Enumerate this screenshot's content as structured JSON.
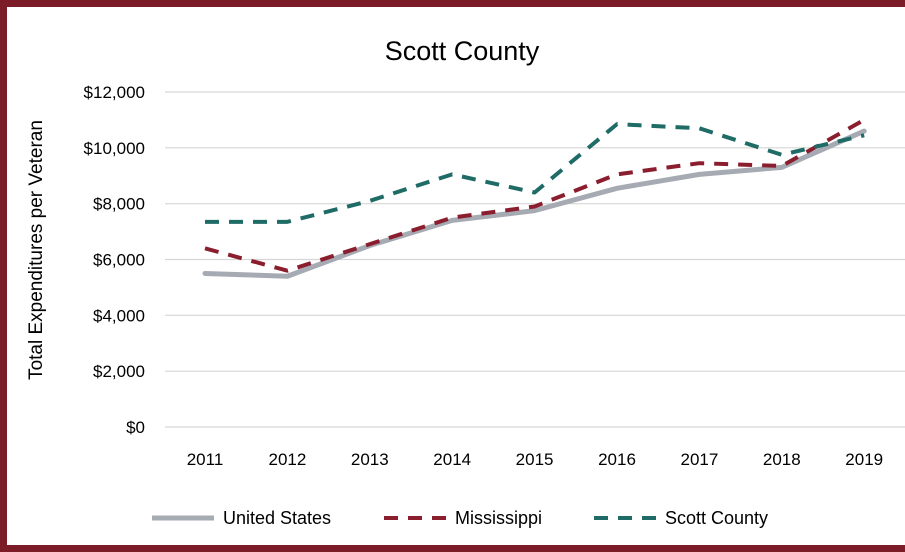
{
  "chart_data": {
    "type": "line",
    "title": "Scott County",
    "xlabel": "",
    "ylabel": "Total Expenditures per Veteran",
    "categories": [
      "2011",
      "2012",
      "2013",
      "2014",
      "2015",
      "2016",
      "2017",
      "2018",
      "2019"
    ],
    "ylim": [
      0,
      12000
    ],
    "yticks": [
      0,
      2000,
      4000,
      6000,
      8000,
      10000,
      12000
    ],
    "ytick_labels": [
      "$0",
      "$2,000",
      "$4,000",
      "$6,000",
      "$8,000",
      "$10,000",
      "$12,000"
    ],
    "grid": "horizontal",
    "legend": "bottom",
    "series": [
      {
        "name": "United States",
        "style": "solid",
        "color": "#a6aab3",
        "values": [
          5500,
          5400,
          6500,
          7400,
          7750,
          8550,
          9050,
          9300,
          10600
        ]
      },
      {
        "name": "Mississippi",
        "style": "dashed",
        "color": "#8b1e2e",
        "values": [
          6400,
          5600,
          6550,
          7500,
          7900,
          9050,
          9450,
          9350,
          11000
        ]
      },
      {
        "name": "Scott County",
        "style": "dashed",
        "color": "#1f6b66",
        "values": [
          7350,
          7350,
          8100,
          9050,
          8400,
          10850,
          10700,
          9750,
          10450
        ]
      }
    ]
  }
}
